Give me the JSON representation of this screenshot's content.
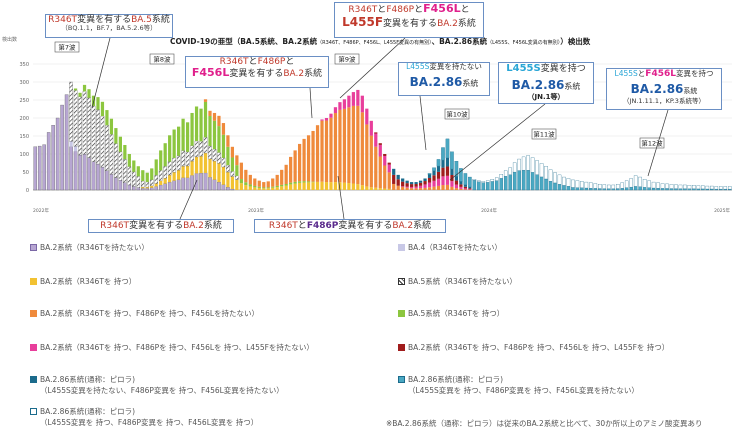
{
  "chart_data": {
    "type": "bar",
    "stacked": true,
    "title": "COVID-19の亜型（BA.5系統、BA.2系統（R346T、F486P、F456L、L455F変異の有無別）、BA.2.86系統（L455S、F456L変異の有無別））検出数",
    "title_main": "COVID-19の亜型（BA.5系統、BA.2系統",
    "title_sub": "（R346T、F486P、F456L、L455F変異の有無別）",
    "title_mid": "、BA.2.86系統",
    "title_sub2": "（L455S、F456L変異の有無別）",
    "title_end": "）検出数",
    "ylabel": "検出数",
    "ylim": [
      0,
      350
    ],
    "yticks": [
      "0",
      "50",
      "100",
      "150",
      "200",
      "250",
      "300",
      "350"
    ],
    "year_labels": [
      "2022年",
      "2023年",
      "2024年",
      "2025年"
    ],
    "wave_labels": [
      "第7波",
      "第8波",
      "第9波",
      "第10波",
      "第11波",
      "第12波"
    ],
    "legend_placement": "bottom",
    "colors": {
      "ba2_no346": "#b7a6d2",
      "ba4": "#c8c8e6",
      "ba2_346": "#f2c232",
      "ba5_no346": "#ffffff",
      "ba2_486": "#ef8a3c",
      "ba5_346": "#8cc63f",
      "ba2_456": "#e83e9b",
      "ba2_455f": "#a01c1c",
      "ba286_no455s": "#1b6b8c",
      "ba286_455s": "#4aa8c2",
      "ba286_455s_456": "#ffffff"
    },
    "weeks": 156,
    "series_note": "weekly stacked counts estimated from the figure"
  },
  "annotations": {
    "a1_l1a": "R346T",
    "a1_l1b": "変異を有する",
    "a1_l1c": "BA.5",
    "a1_l1d": "系統",
    "a1_l2": "（BQ.1.1，BF.7，BA.5.2.6等）",
    "a2_l1a": "R346T",
    "a2_l1b": "と",
    "a2_l1c": "F486P",
    "a2_l1d": "と",
    "a2_l1e": "F456L",
    "a2_l1f": "と",
    "a2_l2a": "L455F",
    "a2_l2b": "変異を有する",
    "a2_l2c": "BA.2",
    "a2_l2d": "系統",
    "a3_l1a": "R346T",
    "a3_l1b": "と",
    "a3_l1c": "F486P",
    "a3_l1d": "と",
    "a3_l2a": "F456L",
    "a3_l2b": "変異を有する",
    "a3_l2c": "BA.2",
    "a3_l2d": "系統",
    "a4_l1a": "L455S",
    "a4_l1b": "変異を持たない",
    "a4_l2": "BA.2.86",
    "a4_l2b": "系統",
    "a5_l1a": "L455S",
    "a5_l1b": "変異を持つ",
    "a5_l2": "BA.2.86",
    "a5_l2b": "系統",
    "a5_l3": "（JN.1等）",
    "a6_l1a": "L455S",
    "a6_l1b": "と",
    "a6_l1c": "F456L",
    "a6_l1d": "変異を持つ",
    "a6_l2": "BA.2.86",
    "a6_l2b": "系統",
    "a6_l3": "（JN.1.11.1，KP.3系統等）",
    "a7a": "R346T",
    "a7b": "変異を有する",
    "a7c": "BA.2",
    "a7d": "系統",
    "a8a": "R346T",
    "a8b": "と",
    "a8c": "F486P",
    "a8d": "変異を有する",
    "a8e": "BA.2",
    "a8f": "系統"
  },
  "legend": [
    {
      "label": "BA.2系統（R346Tを持たない）"
    },
    {
      "label": "BA.4（R346Tを持たない）"
    },
    {
      "label": "BA.2系統（R346Tを 持つ）"
    },
    {
      "label": "BA.5系統（R346Tを持たない）"
    },
    {
      "label": "BA.2系統（R346Tを 持つ、F486Pを 持つ、F456Lを持たない）"
    },
    {
      "label": "BA.5系統（R346Tを 持つ）"
    },
    {
      "label": "BA.2系統（R346Tを 持つ、F486Pを 持つ、F456Lを 持つ、L455Fを持たない）"
    },
    {
      "label": "BA.2系統（R346Tを 持つ、F486Pを 持つ、F456Lを 持つ、L455Fを 持つ）"
    },
    {
      "label": "BA.2.86系統(通称：ピロラ)",
      "sub": "（L455S変異を持たない、F486P変異を 持つ、F456L変異を持たない）"
    },
    {
      "label": "BA.2.86系統(通称：ピロラ)",
      "sub": "（L455S変異を 持つ、F486P変異を 持つ、F456L変異を持たない）"
    },
    {
      "label": "BA.2.86系統(通称：ピロラ)",
      "sub": "（L455S変異を 持つ、F486P変異を 持つ、F456L変異を 持つ）"
    }
  ],
  "footnote": "※BA.2.86系統（通称：ピロラ）は従来のBA.2系統と比べて、30か所以上のアミノ酸変異あり"
}
